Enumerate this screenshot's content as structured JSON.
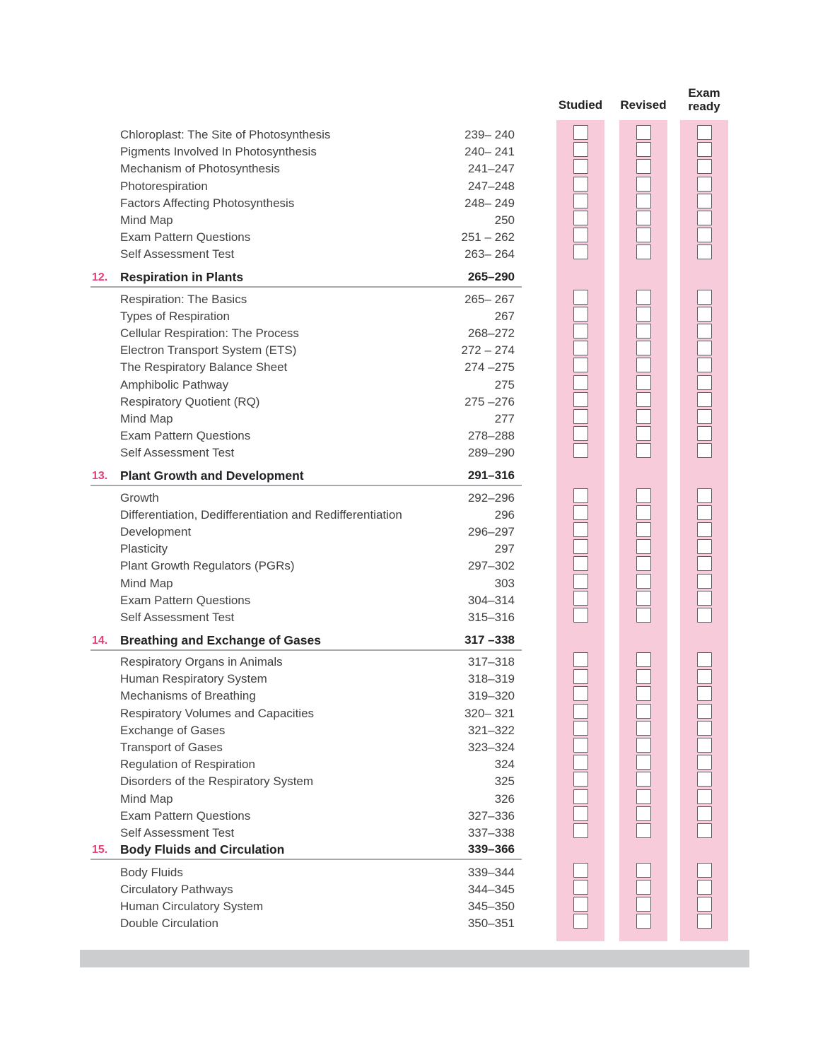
{
  "columns": [
    {
      "key": "studied",
      "label": "Studied"
    },
    {
      "key": "revised",
      "label": "Revised"
    },
    {
      "key": "exam-ready",
      "label": "Exam ready"
    }
  ],
  "sections": [
    {
      "number": "",
      "title": "",
      "pages": "",
      "items": [
        {
          "title": "Chloroplast: The Site of Photosynthesis",
          "pages": "239– 240"
        },
        {
          "title": "Pigments Involved In Photosynthesis",
          "pages": "240– 241"
        },
        {
          "title": "Mechanism of Photosynthesis",
          "pages": "241–247"
        },
        {
          "title": "Photorespiration",
          "pages": "247–248"
        },
        {
          "title": "Factors Affecting Photosynthesis",
          "pages": "248– 249"
        },
        {
          "title": "Mind Map",
          "pages": "250"
        },
        {
          "title": "Exam Pattern Questions",
          "pages": "251 – 262"
        },
        {
          "title": "Self Assessment Test",
          "pages": "263– 264"
        }
      ]
    },
    {
      "number": "12.",
      "title": "Respiration in Plants",
      "pages": "265–290",
      "items": [
        {
          "title": "Respiration: The Basics",
          "pages": "265– 267"
        },
        {
          "title": "Types of Respiration",
          "pages": "267"
        },
        {
          "title": "Cellular Respiration: The Process",
          "pages": "268–272"
        },
        {
          "title": "Electron Transport System (ETS)",
          "pages": "272 – 274"
        },
        {
          "title": "The Respiratory Balance Sheet",
          "pages": "274 –275"
        },
        {
          "title": "Amphibolic Pathway",
          "pages": "275"
        },
        {
          "title": "Respiratory Quotient (RQ)",
          "pages": "275 –276"
        },
        {
          "title": "Mind Map",
          "pages": "277"
        },
        {
          "title": "Exam Pattern Questions",
          "pages": "278–288"
        },
        {
          "title": "Self Assessment Test",
          "pages": "289–290"
        }
      ]
    },
    {
      "number": "13.",
      "title": "Plant Growth and Development",
      "pages": "291–316",
      "items": [
        {
          "title": "Growth",
          "pages": "292–296"
        },
        {
          "title": "Differentiation, Dedifferentiation and Redifferentiation",
          "pages": "296"
        },
        {
          "title": "Development",
          "pages": "296–297"
        },
        {
          "title": "Plasticity",
          "pages": "297"
        },
        {
          "title": "Plant Growth Regulators (PGRs)",
          "pages": "297–302"
        },
        {
          "title": "Mind Map",
          "pages": "303"
        },
        {
          "title": "Exam Pattern Questions",
          "pages": "304–314"
        },
        {
          "title": "Self Assessment Test",
          "pages": "315–316"
        }
      ]
    },
    {
      "number": "14.",
      "title": "Breathing and Exchange of Gases",
      "pages": "317 –338",
      "items": [
        {
          "title": "Respiratory Organs in Animals",
          "pages": "317–318"
        },
        {
          "title": "Human Respiratory System",
          "pages": "318–319"
        },
        {
          "title": "Mechanisms of Breathing",
          "pages": "319–320"
        },
        {
          "title": "Respiratory Volumes and Capacities",
          "pages": "320– 321"
        },
        {
          "title": "Exchange of Gases",
          "pages": "321–322"
        },
        {
          "title": "Transport of Gases",
          "pages": "323–324"
        },
        {
          "title": "Regulation of Respiration",
          "pages": "324"
        },
        {
          "title": "Disorders of the Respiratory System",
          "pages": "325"
        },
        {
          "title": "Mind Map",
          "pages": "326"
        },
        {
          "title": "Exam Pattern Questions",
          "pages": "327–336"
        },
        {
          "title": "Self Assessment Test",
          "pages": "337–338"
        }
      ]
    },
    {
      "number": "15.",
      "title": "Body Fluids and Circulation",
      "pages": "339–366",
      "items": [
        {
          "title": "Body Fluids",
          "pages": "339–344"
        },
        {
          "title": "Circulatory Pathways",
          "pages": "344–345"
        },
        {
          "title": "Human Circulatory System",
          "pages": "345–350"
        },
        {
          "title": "Double Circulation",
          "pages": "350–351"
        }
      ]
    }
  ],
  "colors": {
    "band_pink": "#f7cbda",
    "chapter_number_pink": "#e23e79",
    "heading_rule_gray": "#a6a8ab",
    "footer_bar_gray": "#cccdce",
    "checkbox_border": "#5f5a62",
    "chapter_text": "#232023",
    "body_text": "#3f3f41"
  }
}
